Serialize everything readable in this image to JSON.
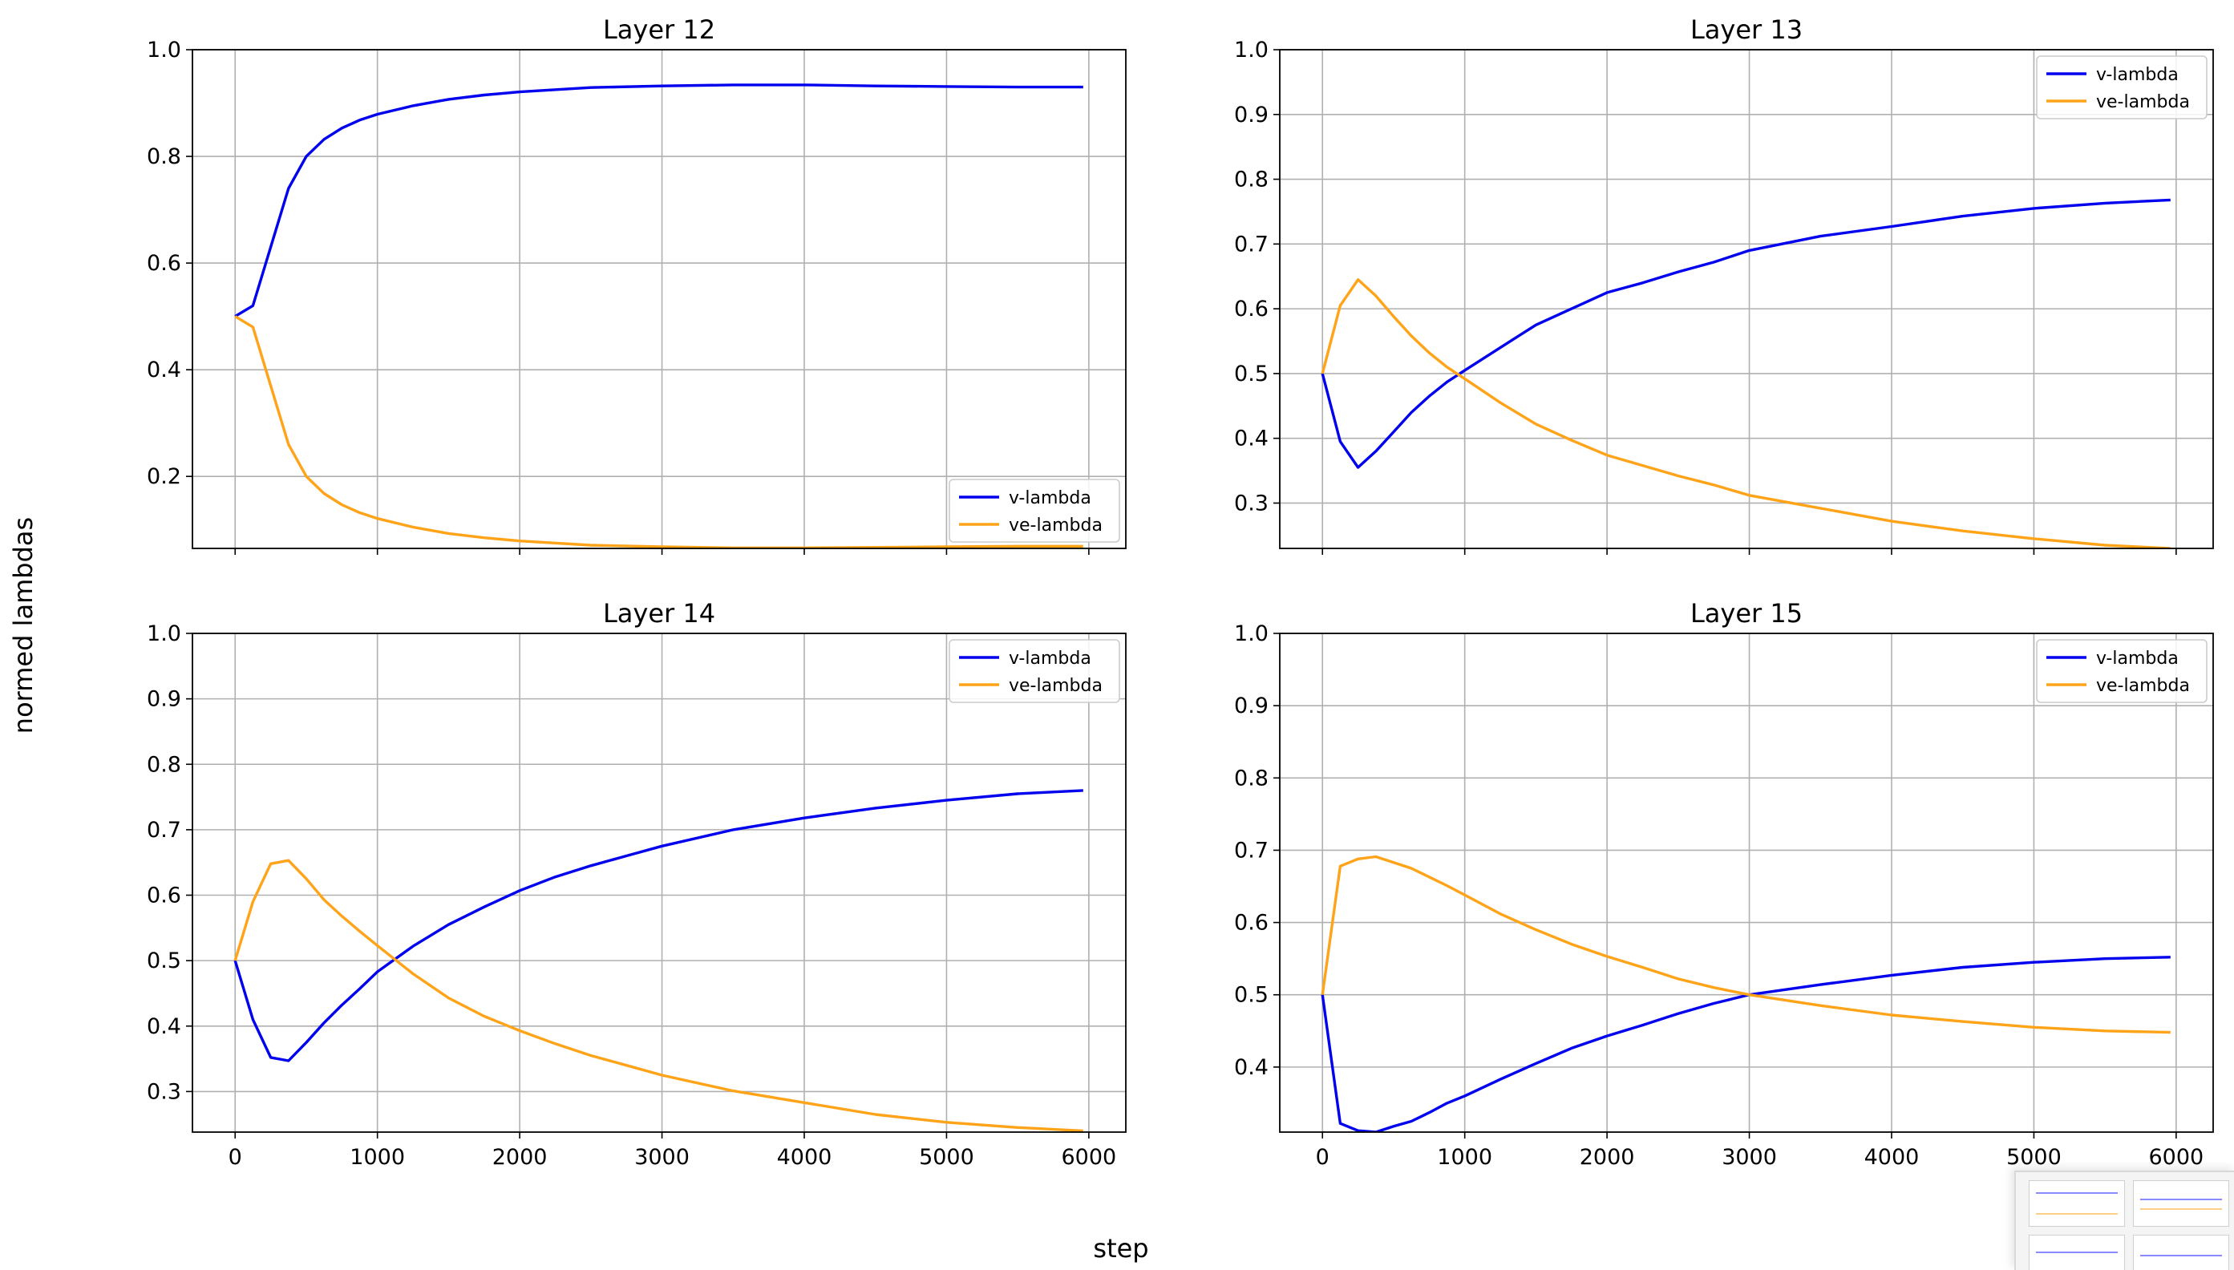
{
  "figure": {
    "ylabel": "normed lambdas",
    "xlabel": "step",
    "colors": {
      "v_lambda": "#0000ee",
      "ve_lambda": "#ffa319",
      "grid": "#b0b0b0"
    }
  },
  "chart_data": [
    {
      "type": "line",
      "title": "Layer 12",
      "xlim": [
        -300,
        6260
      ],
      "ylim": [
        0.065,
        1.0
      ],
      "xticks": [
        0,
        1000,
        2000,
        3000,
        4000,
        5000,
        6000
      ],
      "yticks": [
        0.2,
        0.4,
        0.6,
        0.8,
        1.0
      ],
      "ytick_labels": [
        "0.2",
        "0.4",
        "0.6",
        "0.8",
        "1.0"
      ],
      "show_xtick_labels": false,
      "grid": true,
      "legend_position": "lower-right",
      "series": [
        {
          "name": "v-lambda",
          "color": "#0000ee",
          "x": [
            0,
            125,
            250,
            375,
            500,
            625,
            750,
            875,
            1000,
            1250,
            1500,
            1750,
            2000,
            2500,
            3000,
            3500,
            4000,
            4500,
            5000,
            5500,
            5960
          ],
          "y": [
            0.5,
            0.52,
            0.63,
            0.74,
            0.8,
            0.832,
            0.853,
            0.868,
            0.879,
            0.895,
            0.907,
            0.915,
            0.921,
            0.929,
            0.932,
            0.934,
            0.934,
            0.932,
            0.931,
            0.93,
            0.93
          ]
        },
        {
          "name": "ve-lambda",
          "color": "#ffa319",
          "x": [
            0,
            125,
            250,
            375,
            500,
            625,
            750,
            875,
            1000,
            1250,
            1500,
            1750,
            2000,
            2500,
            3000,
            3500,
            4000,
            4500,
            5000,
            5500,
            5960
          ],
          "y": [
            0.5,
            0.48,
            0.37,
            0.26,
            0.2,
            0.168,
            0.147,
            0.132,
            0.121,
            0.105,
            0.093,
            0.085,
            0.079,
            0.071,
            0.068,
            0.066,
            0.066,
            0.067,
            0.068,
            0.069,
            0.069
          ]
        }
      ]
    },
    {
      "type": "line",
      "title": "Layer 13",
      "xlim": [
        -300,
        6260
      ],
      "ylim": [
        0.23,
        1.0
      ],
      "xticks": [
        0,
        1000,
        2000,
        3000,
        4000,
        5000,
        6000
      ],
      "yticks": [
        0.3,
        0.4,
        0.5,
        0.6,
        0.7,
        0.8,
        0.9,
        1.0
      ],
      "ytick_labels": [
        "0.3",
        "0.4",
        "0.5",
        "0.6",
        "0.7",
        "0.8",
        "0.9",
        "1.0"
      ],
      "show_xtick_labels": false,
      "grid": true,
      "legend_position": "upper-right",
      "series": [
        {
          "name": "v-lambda",
          "color": "#0000ee",
          "x": [
            0,
            125,
            250,
            375,
            500,
            625,
            750,
            875,
            1000,
            1250,
            1500,
            1750,
            2000,
            2250,
            2500,
            2750,
            3000,
            3500,
            4000,
            4500,
            5000,
            5500,
            5960
          ],
          "y": [
            0.5,
            0.395,
            0.355,
            0.38,
            0.41,
            0.44,
            0.465,
            0.487,
            0.505,
            0.54,
            0.575,
            0.6,
            0.625,
            0.64,
            0.657,
            0.672,
            0.69,
            0.712,
            0.727,
            0.743,
            0.755,
            0.763,
            0.768
          ]
        },
        {
          "name": "ve-lambda",
          "color": "#ffa319",
          "x": [
            0,
            125,
            250,
            375,
            500,
            625,
            750,
            875,
            1000,
            1250,
            1500,
            1750,
            2000,
            2250,
            2500,
            2750,
            3000,
            3500,
            4000,
            4500,
            5000,
            5500,
            5960
          ],
          "y": [
            0.5,
            0.605,
            0.645,
            0.62,
            0.588,
            0.558,
            0.532,
            0.51,
            0.492,
            0.455,
            0.422,
            0.397,
            0.374,
            0.358,
            0.342,
            0.328,
            0.312,
            0.292,
            0.272,
            0.257,
            0.245,
            0.235,
            0.23
          ]
        }
      ]
    },
    {
      "type": "line",
      "title": "Layer 14",
      "xlim": [
        -300,
        6260
      ],
      "ylim": [
        0.238,
        1.0
      ],
      "xticks": [
        0,
        1000,
        2000,
        3000,
        4000,
        5000,
        6000
      ],
      "xtick_labels": [
        "0",
        "1000",
        "2000",
        "3000",
        "4000",
        "5000",
        "6000"
      ],
      "yticks": [
        0.3,
        0.4,
        0.5,
        0.6,
        0.7,
        0.8,
        0.9,
        1.0
      ],
      "ytick_labels": [
        "0.3",
        "0.4",
        "0.5",
        "0.6",
        "0.7",
        "0.8",
        "0.9",
        "1.0"
      ],
      "show_xtick_labels": true,
      "grid": true,
      "legend_position": "upper-right",
      "series": [
        {
          "name": "v-lambda",
          "color": "#0000ee",
          "x": [
            0,
            125,
            250,
            375,
            500,
            625,
            750,
            875,
            1000,
            1250,
            1500,
            1750,
            2000,
            2250,
            2500,
            2750,
            3000,
            3500,
            4000,
            4500,
            5000,
            5500,
            5960
          ],
          "y": [
            0.5,
            0.41,
            0.352,
            0.347,
            0.375,
            0.405,
            0.432,
            0.457,
            0.483,
            0.522,
            0.555,
            0.582,
            0.607,
            0.628,
            0.645,
            0.66,
            0.675,
            0.7,
            0.718,
            0.733,
            0.745,
            0.755,
            0.76
          ]
        },
        {
          "name": "ve-lambda",
          "color": "#ffa319",
          "x": [
            0,
            125,
            250,
            375,
            500,
            625,
            750,
            875,
            1000,
            1250,
            1500,
            1750,
            2000,
            2250,
            2500,
            2750,
            3000,
            3500,
            4000,
            4500,
            5000,
            5500,
            5960
          ],
          "y": [
            0.5,
            0.59,
            0.648,
            0.653,
            0.625,
            0.593,
            0.568,
            0.545,
            0.523,
            0.48,
            0.443,
            0.415,
            0.393,
            0.373,
            0.355,
            0.34,
            0.325,
            0.301,
            0.283,
            0.265,
            0.253,
            0.245,
            0.24
          ]
        }
      ]
    },
    {
      "type": "line",
      "title": "Layer 15",
      "xlim": [
        -300,
        6260
      ],
      "ylim": [
        0.31,
        1.0
      ],
      "xticks": [
        0,
        1000,
        2000,
        3000,
        4000,
        5000,
        6000
      ],
      "xtick_labels": [
        "0",
        "1000",
        "2000",
        "3000",
        "4000",
        "5000",
        "6000"
      ],
      "yticks": [
        0.4,
        0.5,
        0.6,
        0.7,
        0.8,
        0.9,
        1.0
      ],
      "ytick_labels": [
        "0.4",
        "0.5",
        "0.6",
        "0.7",
        "0.8",
        "0.9",
        "1.0"
      ],
      "show_xtick_labels": true,
      "grid": true,
      "legend_position": "upper-right",
      "series": [
        {
          "name": "v-lambda",
          "color": "#0000ee",
          "x": [
            0,
            125,
            250,
            375,
            500,
            625,
            750,
            875,
            1000,
            1250,
            1500,
            1750,
            2000,
            2250,
            2500,
            2750,
            3000,
            3500,
            4000,
            4500,
            5000,
            5500,
            5960
          ],
          "y": [
            0.5,
            0.322,
            0.312,
            0.31,
            0.318,
            0.325,
            0.337,
            0.35,
            0.36,
            0.383,
            0.405,
            0.426,
            0.443,
            0.458,
            0.474,
            0.488,
            0.5,
            0.514,
            0.527,
            0.538,
            0.545,
            0.55,
            0.552
          ]
        },
        {
          "name": "ve-lambda",
          "color": "#ffa319",
          "x": [
            0,
            125,
            250,
            375,
            500,
            625,
            750,
            875,
            1000,
            1250,
            1500,
            1750,
            2000,
            2250,
            2500,
            2750,
            3000,
            3500,
            4000,
            4500,
            5000,
            5500,
            5960
          ],
          "y": [
            0.5,
            0.678,
            0.688,
            0.691,
            0.683,
            0.675,
            0.663,
            0.651,
            0.638,
            0.612,
            0.59,
            0.57,
            0.553,
            0.538,
            0.522,
            0.51,
            0.5,
            0.485,
            0.472,
            0.463,
            0.455,
            0.45,
            0.448
          ]
        }
      ]
    }
  ]
}
